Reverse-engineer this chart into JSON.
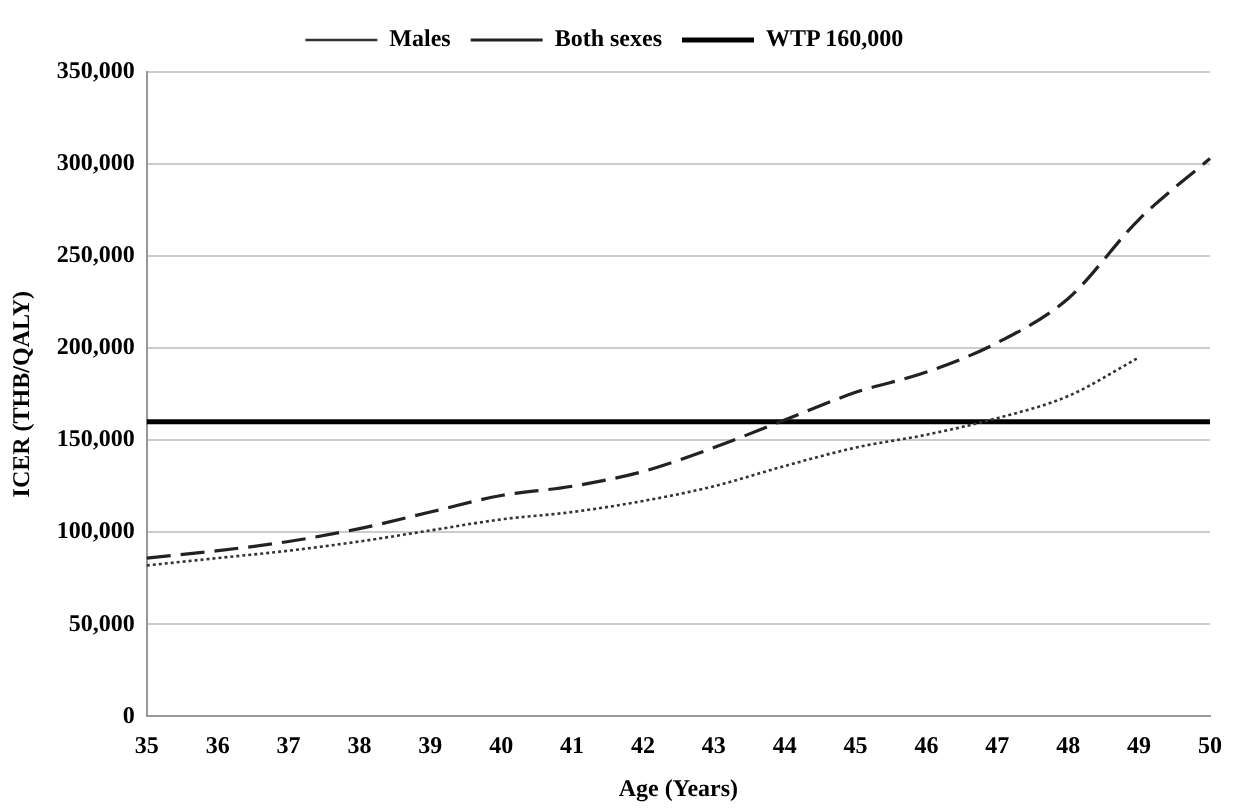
{
  "chart_data": {
    "type": "line",
    "xlabel": "Age (Years)",
    "ylabel": "ICER (THB/QALY)",
    "categories": [
      "35",
      "36",
      "37",
      "38",
      "39",
      "40",
      "41",
      "42",
      "43",
      "44",
      "45",
      "46",
      "47",
      "48",
      "49",
      "50"
    ],
    "series": [
      {
        "name": "Males",
        "color": "#333333",
        "line_style": "dotted",
        "values": [
          82000,
          86000,
          90000,
          95000,
          101000,
          107000,
          111000,
          117000,
          125000,
          136000,
          146000,
          153000,
          162000,
          174000,
          195000,
          null
        ]
      },
      {
        "name": "Both sexes",
        "color": "#222222",
        "line_style": "dashed",
        "values": [
          86000,
          90000,
          95000,
          102000,
          111000,
          120000,
          125000,
          133000,
          146000,
          161000,
          176000,
          187000,
          203000,
          227000,
          270000,
          303000
        ]
      },
      {
        "name": "WTP 160,000",
        "color": "#000000",
        "line_style": "solid",
        "values": [
          160000,
          160000,
          160000,
          160000,
          160000,
          160000,
          160000,
          160000,
          160000,
          160000,
          160000,
          160000,
          160000,
          160000,
          160000,
          160000
        ]
      }
    ],
    "ylim": [
      0,
      350000
    ],
    "yticks": [
      0,
      {
        "value": 50000,
        "label": "50,000"
      },
      {
        "value": 100000,
        "label": "100,000"
      },
      {
        "value": 150000,
        "label": "150,000"
      },
      {
        "value": 200000,
        "label": "200,000"
      },
      {
        "value": 250000,
        "label": "250,000"
      },
      {
        "value": 300000,
        "label": "300,000"
      },
      {
        "value": 350000,
        "label": "350,000"
      }
    ],
    "grid": "y",
    "legend": "top",
    "marker": "none"
  }
}
